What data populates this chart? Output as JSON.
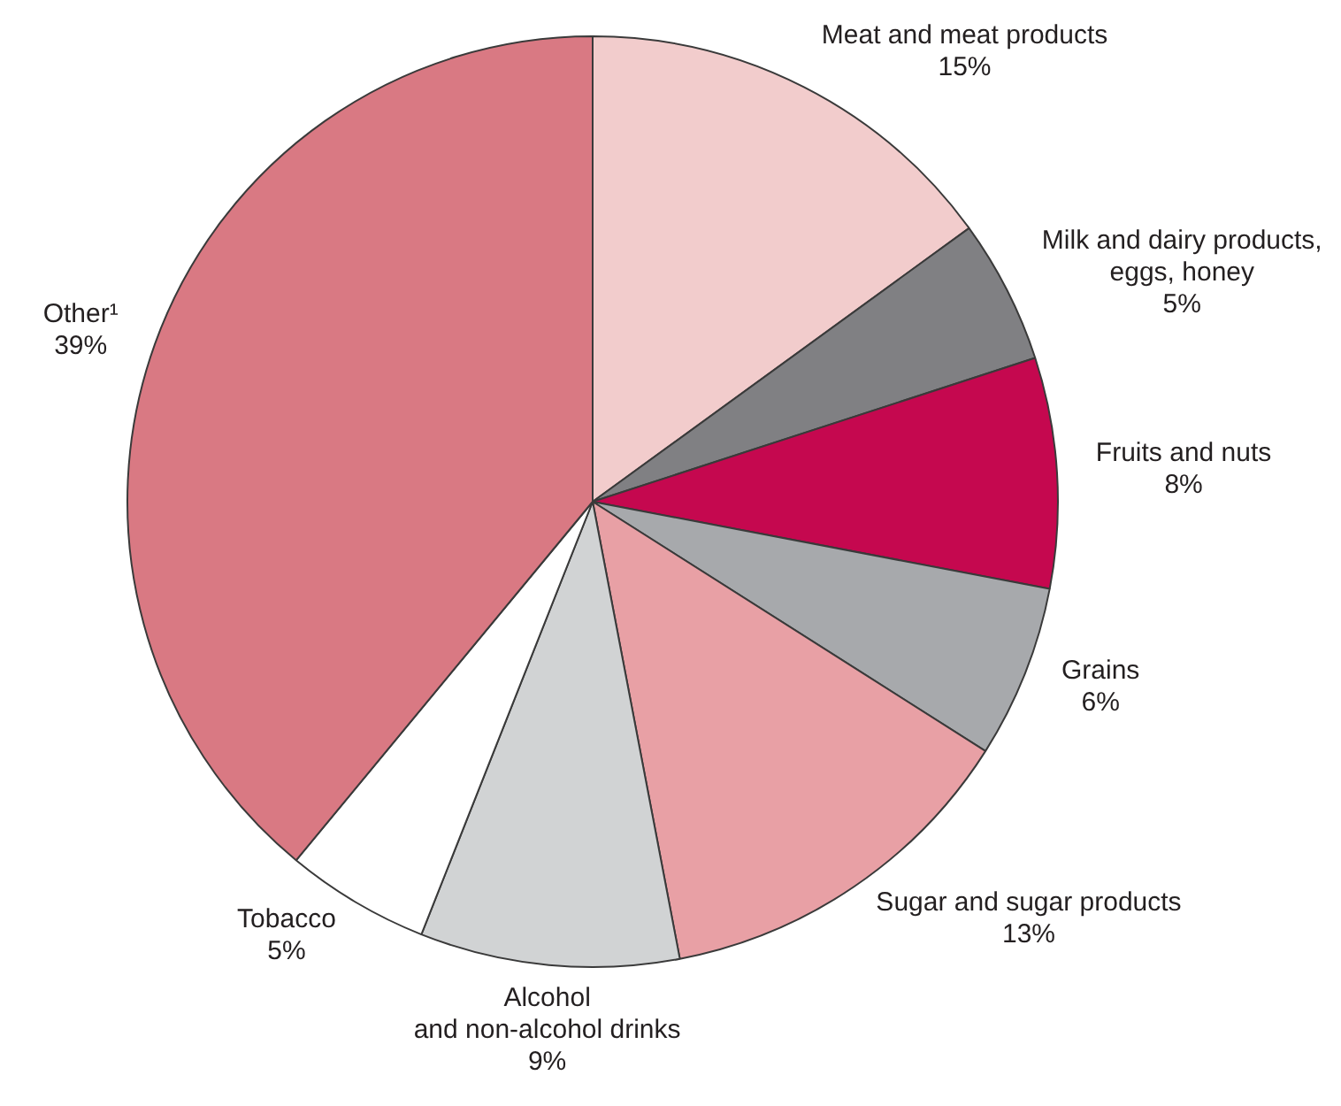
{
  "chart_data": {
    "type": "pie",
    "categories": [
      "Meat and meat products",
      "Milk and dairy products,\neggs, honey",
      "Fruits and nuts",
      "Grains",
      "Sugar and sugar products",
      "Alcohol\nand non-alcohol drinks",
      "Tobacco",
      "Other¹"
    ],
    "values": [
      15,
      5,
      8,
      6,
      13,
      9,
      5,
      39
    ],
    "colors": [
      "#f2cccc",
      "#808083",
      "#c5084f",
      "#a7a9ac",
      "#e8a0a5",
      "#d1d3d4",
      "#ffffff",
      "#d97983"
    ],
    "value_labels": [
      "15%",
      "5%",
      "8%",
      "6%",
      "13%",
      "9%",
      "5%",
      "39%"
    ],
    "legend": false
  }
}
